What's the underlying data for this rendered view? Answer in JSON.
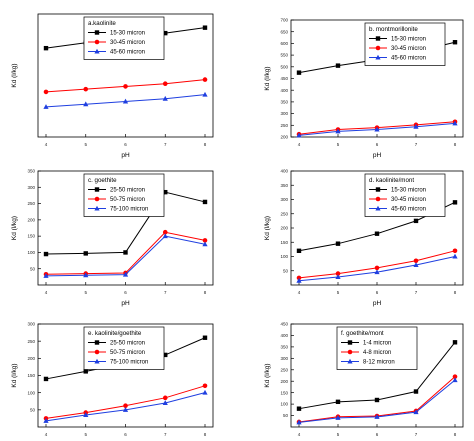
{
  "chart_data": [
    {
      "type": "line",
      "title": "a.kaolinite",
      "xlabel": "pH",
      "ylabel": "Kd (l/kg)",
      "x": [
        4,
        5,
        6,
        7,
        8
      ],
      "xticks": [
        "4",
        "5",
        "6",
        "7",
        "8"
      ],
      "ylim": [
        0,
        45
      ],
      "yticks": [],
      "grid": false,
      "legend": "top-left",
      "series": [
        {
          "name": "15-30 micron",
          "color": "#000000",
          "marker": "square",
          "values": [
            32.5,
            34.5,
            36.0,
            38.0,
            40.0
          ]
        },
        {
          "name": "30-45 micron",
          "color": "#ff0000",
          "marker": "circle",
          "values": [
            16.5,
            17.5,
            18.5,
            19.5,
            21.0
          ]
        },
        {
          "name": "45-60 micron",
          "color": "#1f3fe0",
          "marker": "triangle",
          "values": [
            11.0,
            12.0,
            13.0,
            14.0,
            15.5
          ]
        }
      ]
    },
    {
      "type": "line",
      "title": "b. montmorillonite",
      "xlabel": "pH",
      "ylabel": "Kd (l/kg)",
      "x": [
        4,
        5,
        6,
        7,
        8
      ],
      "xticks": [
        "4",
        "5",
        "6",
        "7",
        "8"
      ],
      "ylim": [
        200,
        700
      ],
      "yticks": [
        "200",
        "250",
        "300",
        "350",
        "400",
        "450",
        "500",
        "550",
        "600",
        "650",
        "700"
      ],
      "grid": false,
      "legend": "top-right",
      "series": [
        {
          "name": "15-30 micron",
          "color": "#000000",
          "marker": "square",
          "values": [
            475,
            505,
            530,
            565,
            605
          ]
        },
        {
          "name": "30-45 micron",
          "color": "#ff0000",
          "marker": "circle",
          "values": [
            212,
            232,
            240,
            252,
            265
          ]
        },
        {
          "name": "45-60 micron",
          "color": "#1f3fe0",
          "marker": "triangle",
          "values": [
            207,
            224,
            232,
            244,
            258
          ]
        }
      ]
    },
    {
      "type": "line",
      "title": "c. goethite",
      "xlabel": "pH",
      "ylabel": "Kd (l/kg)",
      "x": [
        4,
        5,
        6,
        7,
        8
      ],
      "xticks": [
        "4",
        "5",
        "6",
        "7",
        "8"
      ],
      "ylim": [
        0,
        350
      ],
      "yticks": [
        "50",
        "100",
        "150",
        "200",
        "250",
        "300",
        "350"
      ],
      "grid": false,
      "legend": "top-left",
      "series": [
        {
          "name": "25-50 micron",
          "color": "#000000",
          "marker": "square",
          "values": [
            95,
            97,
            100,
            285,
            255
          ]
        },
        {
          "name": "50-75 micron",
          "color": "#ff0000",
          "marker": "circle",
          "values": [
            33,
            35,
            37,
            162,
            137
          ]
        },
        {
          "name": "75-100 micron",
          "color": "#1f3fe0",
          "marker": "triangle",
          "values": [
            28,
            30,
            32,
            150,
            125
          ]
        }
      ]
    },
    {
      "type": "line",
      "title": "d. kaolinite/mont",
      "xlabel": "pH",
      "ylabel": "Kd (l/kg)",
      "x": [
        4,
        5,
        6,
        7,
        8
      ],
      "xticks": [
        "4",
        "5",
        "6",
        "7",
        "8"
      ],
      "ylim": [
        0,
        400
      ],
      "yticks": [
        "50",
        "100",
        "150",
        "200",
        "250",
        "300",
        "350",
        "400"
      ],
      "grid": false,
      "legend": "top-right",
      "series": [
        {
          "name": "15-30 micron",
          "color": "#000000",
          "marker": "square",
          "values": [
            120,
            145,
            180,
            225,
            290
          ]
        },
        {
          "name": "30-45 micron",
          "color": "#ff0000",
          "marker": "circle",
          "values": [
            25,
            40,
            60,
            85,
            120
          ]
        },
        {
          "name": "45-60 micron",
          "color": "#1f3fe0",
          "marker": "triangle",
          "values": [
            15,
            28,
            45,
            70,
            100
          ]
        }
      ]
    },
    {
      "type": "line",
      "title": "e. kaolinite/goethite",
      "xlabel": "pH",
      "ylabel": "Kd (l/kg)",
      "x": [
        4,
        5,
        6,
        7,
        8
      ],
      "xticks": [
        "4",
        "5",
        "6",
        "7",
        "8"
      ],
      "ylim": [
        0,
        300
      ],
      "yticks": [
        "50",
        "100",
        "150",
        "200",
        "250",
        "300"
      ],
      "grid": false,
      "legend": "top-left",
      "series": [
        {
          "name": "25-50 micron",
          "color": "#000000",
          "marker": "square",
          "values": [
            140,
            162,
            185,
            210,
            260
          ]
        },
        {
          "name": "50-75 micron",
          "color": "#ff0000",
          "marker": "circle",
          "values": [
            25,
            42,
            62,
            85,
            120
          ]
        },
        {
          "name": "75-100 micron",
          "color": "#1f3fe0",
          "marker": "triangle",
          "values": [
            18,
            35,
            50,
            70,
            100
          ]
        }
      ]
    },
    {
      "type": "line",
      "title": "f. goethite/mont",
      "xlabel": "pH",
      "ylabel": "Kd (l/kg)",
      "x": [
        4,
        5,
        6,
        7,
        8
      ],
      "xticks": [
        "4",
        "5",
        "6",
        "7",
        "8"
      ],
      "ylim": [
        0,
        450
      ],
      "yticks": [
        "50",
        "100",
        "150",
        "200",
        "250",
        "300",
        "350",
        "400",
        "450"
      ],
      "grid": false,
      "legend": "top-left",
      "series": [
        {
          "name": "1-4 micron",
          "color": "#000000",
          "marker": "square",
          "values": [
            80,
            110,
            118,
            155,
            370
          ]
        },
        {
          "name": "4-8 micron",
          "color": "#ff0000",
          "marker": "circle",
          "values": [
            22,
            45,
            48,
            70,
            220
          ]
        },
        {
          "name": "8-12 micron",
          "color": "#1f3fe0",
          "marker": "triangle",
          "values": [
            20,
            40,
            44,
            65,
            205
          ]
        }
      ]
    }
  ]
}
